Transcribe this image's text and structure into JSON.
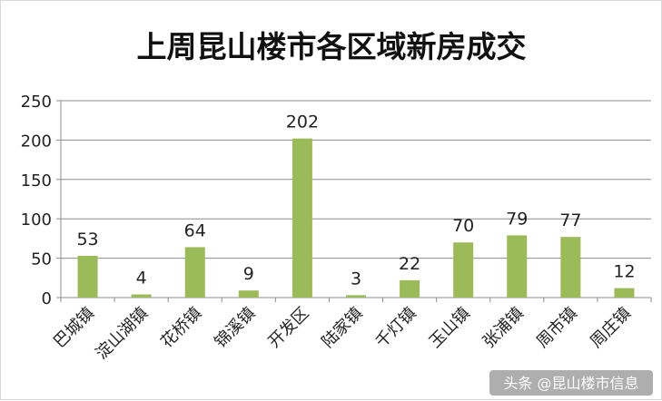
{
  "chart_data": {
    "type": "bar",
    "title": "上周昆山楼市各区域新房成交",
    "categories": [
      "巴城镇",
      "淀山湖镇",
      "花桥镇",
      "锦溪镇",
      "开发区",
      "陆家镇",
      "千灯镇",
      "玉山镇",
      "张浦镇",
      "周市镇",
      "周庄镇"
    ],
    "values": [
      53,
      4,
      64,
      9,
      202,
      3,
      22,
      70,
      79,
      77,
      12
    ],
    "ylim": [
      0,
      250
    ],
    "yticks": [
      0,
      50,
      100,
      150,
      200,
      250
    ],
    "grid": true,
    "legend": "none",
    "data_labels": true,
    "bar_color": "#9bbb59"
  },
  "watermark": "头条 @昆山楼市信息"
}
